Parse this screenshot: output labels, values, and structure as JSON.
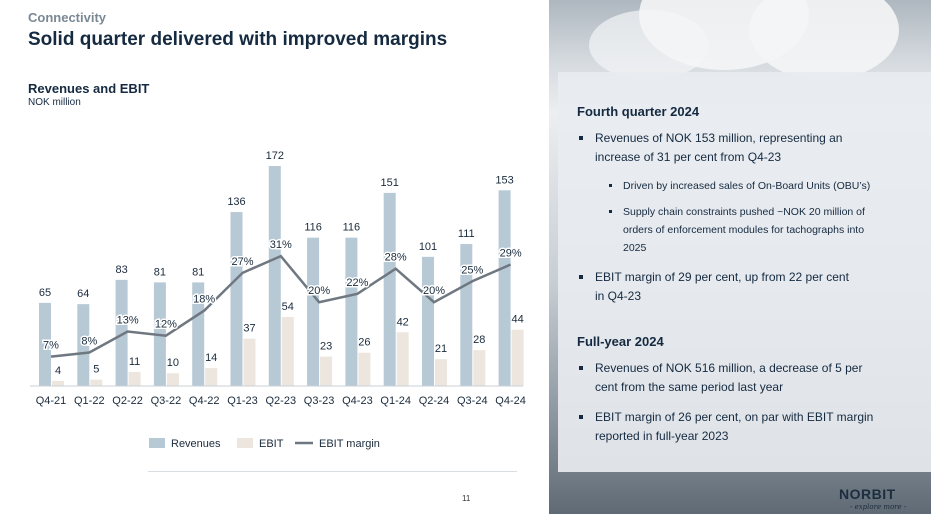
{
  "header": {
    "section": "Connectivity",
    "title": "Solid quarter delivered with improved margins"
  },
  "chart_data": {
    "type": "bar",
    "title": "Revenues and EBIT",
    "subtitle": "NOK million",
    "categories": [
      "Q4-21",
      "Q1-22",
      "Q2-22",
      "Q3-22",
      "Q4-22",
      "Q1-23",
      "Q2-23",
      "Q3-23",
      "Q4-23",
      "Q1-24",
      "Q2-24",
      "Q3-24",
      "Q4-24"
    ],
    "series": [
      {
        "name": "Revenues",
        "kind": "bar",
        "color": "#b8c9d6",
        "values": [
          65,
          64,
          83,
          81,
          81,
          136,
          172,
          116,
          116,
          151,
          101,
          111,
          153
        ]
      },
      {
        "name": "EBIT",
        "kind": "bar",
        "color": "#ece6df",
        "values": [
          4,
          5,
          11,
          10,
          14,
          37,
          54,
          23,
          26,
          42,
          21,
          28,
          44
        ]
      },
      {
        "name": "EBIT margin",
        "kind": "line",
        "color": "#6f7780",
        "values": [
          7,
          8,
          13,
          12,
          18,
          27,
          31,
          20,
          22,
          28,
          20,
          25,
          29
        ],
        "labels": [
          "7%",
          "8%",
          "13%",
          "12%",
          "18%",
          "27%",
          "31%",
          "20%",
          "22%",
          "28%",
          "20%",
          "25%",
          "29%"
        ]
      }
    ],
    "legend": [
      "Revenues",
      "EBIT",
      "EBIT margin"
    ],
    "legend_position": "bottom",
    "ylim": [
      0,
      190
    ],
    "margin_ylim": [
      0,
      58
    ],
    "grid": false
  },
  "panel": {
    "q4": {
      "heading": "Fourth quarter 2024",
      "b1": [
        "Revenues of NOK 153 million, representing an",
        "increase of 31 per cent from Q4-23"
      ],
      "b1a": "Driven by increased sales of On-Board Units (OBU’s)",
      "b1b": [
        "Supply chain constraints pushed ~NOK 20 million of",
        "orders of enforcement modules for tachographs into",
        "2025"
      ],
      "b2": [
        "EBIT margin of 29 per cent, up from 22 per cent",
        "in Q4-23"
      ]
    },
    "fy": {
      "heading": "Full-year 2024",
      "b1": [
        "Revenues of NOK 516 million, a decrease of 5 per",
        "cent from the same period last year"
      ],
      "b2": [
        "EBIT margin of 26 per cent, on par with EBIT margin",
        "reported in full-year 2023"
      ]
    }
  },
  "footer": {
    "page": "11",
    "logo": "NORBIT",
    "tagline": "- explore more -"
  }
}
